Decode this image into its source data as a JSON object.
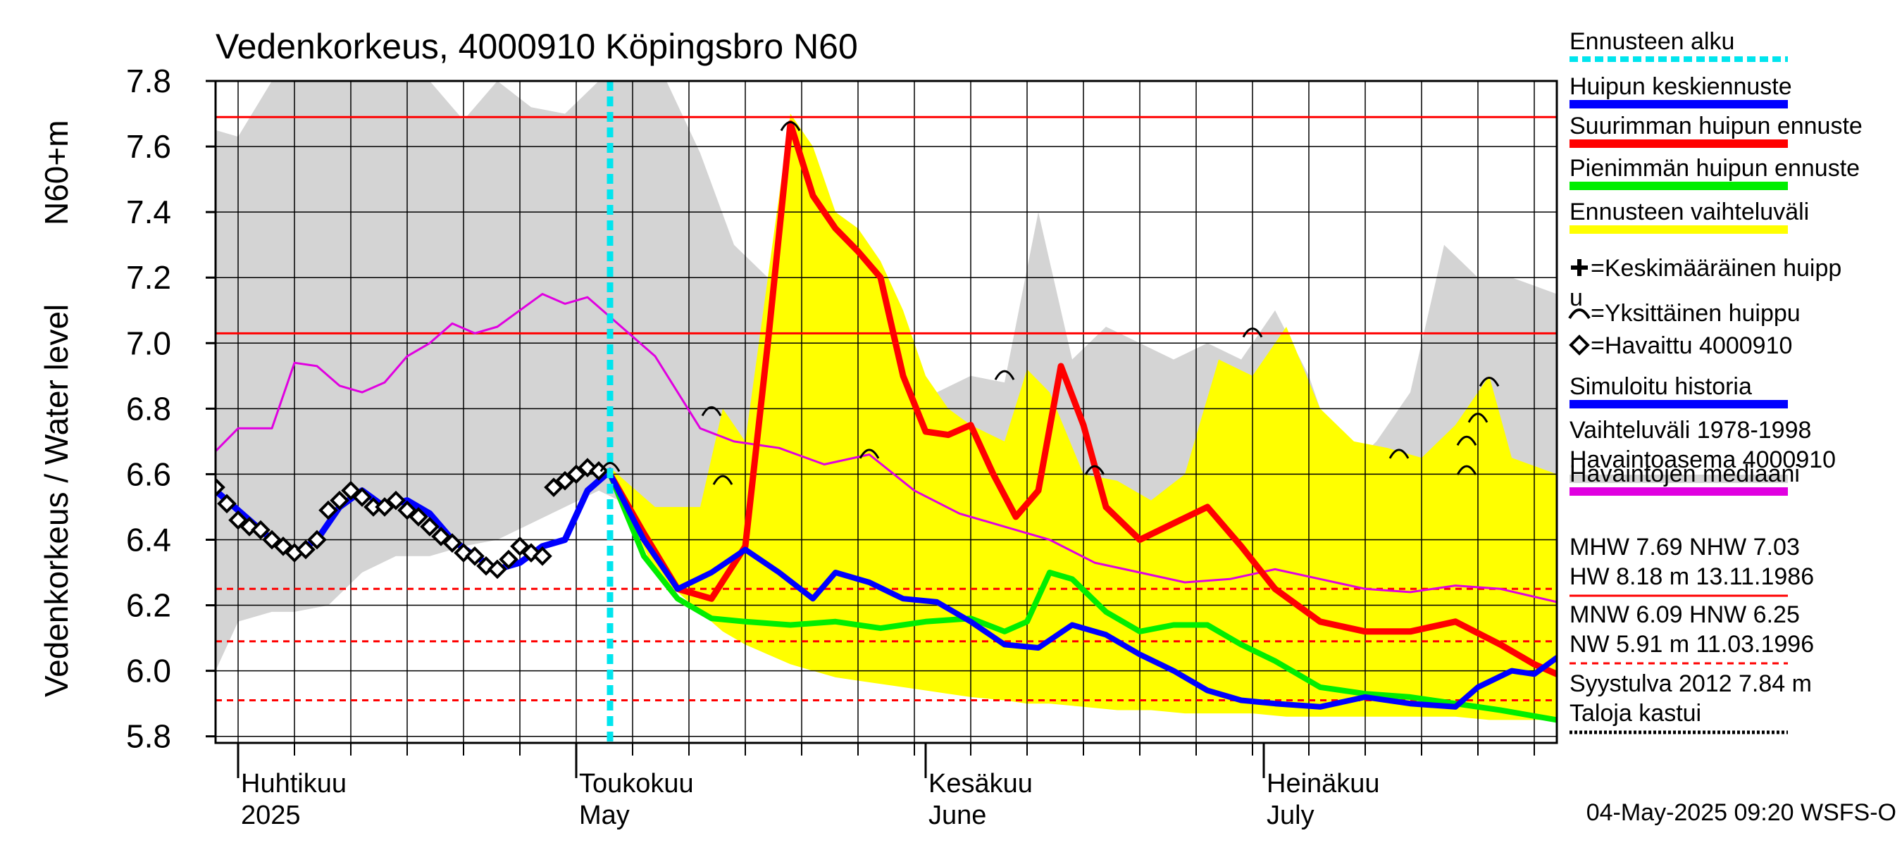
{
  "chart_data": {
    "type": "line",
    "title": "Vedenkorkeus, 4000910 Köpingsbro N60",
    "ylabel_main": "Vedenkorkeus / Water level",
    "ylabel_unit": "N60+m",
    "ylim": [
      5.78,
      7.8
    ],
    "x_range": [
      "2025-03-30",
      "2025-07-27"
    ],
    "y_ticks": [
      "5.8",
      "6.0",
      "6.2",
      "6.4",
      "6.6",
      "6.8",
      "7.0",
      "7.2",
      "7.4",
      "7.6",
      "7.8"
    ],
    "month_labels": [
      {
        "date": "2025-04-01",
        "fi": "Huhtikuu",
        "en": "2025"
      },
      {
        "date": "2025-05-01",
        "fi": "Toukokuu",
        "en": "May"
      },
      {
        "date": "2025-06-01",
        "fi": "Kesäkuu",
        "en": "June"
      },
      {
        "date": "2025-07-01",
        "fi": "Heinäkuu",
        "en": "July"
      }
    ],
    "forecast_start": "2025-05-04",
    "reference_lines": [
      {
        "name": "MHW",
        "value": 7.69,
        "style": "solid"
      },
      {
        "name": "NHW",
        "value": 7.03,
        "style": "solid"
      },
      {
        "name": "HNW",
        "value": 6.25,
        "style": "dashed"
      },
      {
        "name": "MNW",
        "value": 6.09,
        "style": "dashed"
      },
      {
        "name": "NW",
        "value": 5.91,
        "style": "dashed"
      }
    ],
    "historical_range": {
      "x": [
        "2025-03-30",
        "2025-04-01",
        "2025-04-04",
        "2025-04-06",
        "2025-04-09",
        "2025-04-12",
        "2025-04-15",
        "2025-04-18",
        "2025-04-21",
        "2025-04-24",
        "2025-04-27",
        "2025-04-30",
        "2025-05-03",
        "2025-05-06",
        "2025-05-09",
        "2025-05-12",
        "2025-05-15",
        "2025-05-18",
        "2025-05-21",
        "2025-05-24",
        "2025-05-27",
        "2025-05-30",
        "2025-06-02",
        "2025-06-05",
        "2025-06-08",
        "2025-06-11",
        "2025-06-14",
        "2025-06-17",
        "2025-06-20",
        "2025-06-23",
        "2025-06-26",
        "2025-06-29",
        "2025-07-02",
        "2025-07-05",
        "2025-07-08",
        "2025-07-11",
        "2025-07-14",
        "2025-07-17",
        "2025-07-20",
        "2025-07-23",
        "2025-07-27"
      ],
      "high": [
        7.65,
        7.63,
        7.8,
        7.8,
        7.8,
        7.8,
        7.8,
        7.8,
        7.68,
        7.8,
        7.72,
        7.7,
        7.8,
        7.8,
        7.8,
        7.58,
        7.3,
        7.2,
        7.05,
        6.95,
        6.9,
        6.88,
        6.85,
        6.9,
        6.88,
        7.4,
        6.95,
        7.05,
        7.0,
        6.95,
        7.0,
        6.95,
        7.1,
        6.9,
        6.6,
        6.7,
        6.85,
        7.3,
        7.2,
        7.2,
        7.15
      ],
      "low": [
        6.0,
        6.15,
        6.18,
        6.18,
        6.2,
        6.3,
        6.35,
        6.35,
        6.38,
        6.4,
        6.45,
        6.5,
        6.55,
        6.5,
        6.35,
        6.28,
        6.25,
        6.22,
        6.2,
        6.18,
        6.15,
        6.12,
        6.1,
        6.08,
        6.05,
        6.03,
        6.0,
        5.98,
        5.96,
        5.95,
        5.94,
        5.93,
        5.92,
        5.92,
        5.92,
        5.92,
        5.92,
        5.93,
        5.93,
        5.95,
        5.95
      ]
    },
    "forecast_range": {
      "x": [
        "2025-05-04",
        "2025-05-08",
        "2025-05-12",
        "2025-05-14",
        "2025-05-16",
        "2025-05-18",
        "2025-05-20",
        "2025-05-22",
        "2025-05-24",
        "2025-05-26",
        "2025-05-28",
        "2025-05-30",
        "2025-06-01",
        "2025-06-03",
        "2025-06-05",
        "2025-06-08",
        "2025-06-10",
        "2025-06-12",
        "2025-06-15",
        "2025-06-18",
        "2025-06-21",
        "2025-06-24",
        "2025-06-27",
        "2025-06-30",
        "2025-07-03",
        "2025-07-06",
        "2025-07-09",
        "2025-07-12",
        "2025-07-15",
        "2025-07-18",
        "2025-07-21",
        "2025-07-23",
        "2025-07-27"
      ],
      "high": [
        6.62,
        6.5,
        6.5,
        6.8,
        6.7,
        7.2,
        7.7,
        7.6,
        7.4,
        7.35,
        7.25,
        7.1,
        6.9,
        6.8,
        6.75,
        6.7,
        6.92,
        6.85,
        6.6,
        6.58,
        6.52,
        6.6,
        6.95,
        6.9,
        7.05,
        6.8,
        6.7,
        6.68,
        6.65,
        6.75,
        6.9,
        6.65,
        6.6
      ],
      "low": [
        6.6,
        6.3,
        6.18,
        6.12,
        6.08,
        6.05,
        6.02,
        6.0,
        5.98,
        5.97,
        5.96,
        5.95,
        5.94,
        5.93,
        5.92,
        5.91,
        5.9,
        5.9,
        5.89,
        5.88,
        5.88,
        5.87,
        5.87,
        5.87,
        5.86,
        5.86,
        5.86,
        5.86,
        5.86,
        5.86,
        5.85,
        5.85,
        5.85
      ]
    },
    "series": [
      {
        "name": "Havaintojen mediaani",
        "color": "#e000e0",
        "x": [
          "2025-03-30",
          "2025-04-01",
          "2025-04-04",
          "2025-04-06",
          "2025-04-08",
          "2025-04-10",
          "2025-04-12",
          "2025-04-14",
          "2025-04-16",
          "2025-04-18",
          "2025-04-20",
          "2025-04-22",
          "2025-04-24",
          "2025-04-26",
          "2025-04-28",
          "2025-04-30",
          "2025-05-02",
          "2025-05-05",
          "2025-05-08",
          "2025-05-12",
          "2025-05-15",
          "2025-05-19",
          "2025-05-23",
          "2025-05-27",
          "2025-05-31",
          "2025-06-04",
          "2025-06-08",
          "2025-06-12",
          "2025-06-16",
          "2025-06-20",
          "2025-06-24",
          "2025-06-28",
          "2025-07-02",
          "2025-07-06",
          "2025-07-10",
          "2025-07-14",
          "2025-07-18",
          "2025-07-22",
          "2025-07-27"
        ],
        "y": [
          6.67,
          6.74,
          6.74,
          6.94,
          6.93,
          6.87,
          6.85,
          6.88,
          6.96,
          7.0,
          7.06,
          7.03,
          7.05,
          7.1,
          7.15,
          7.12,
          7.14,
          7.05,
          6.96,
          6.74,
          6.7,
          6.68,
          6.63,
          6.66,
          6.55,
          6.48,
          6.44,
          6.4,
          6.33,
          6.3,
          6.27,
          6.28,
          6.31,
          6.28,
          6.25,
          6.24,
          6.26,
          6.25,
          6.21
        ]
      },
      {
        "name": "Suurimman huipun ennuste",
        "color": "#ff0000",
        "x": [
          "2025-05-04",
          "2025-05-07",
          "2025-05-10",
          "2025-05-13",
          "2025-05-16",
          "2025-05-18",
          "2025-05-20",
          "2025-05-22",
          "2025-05-24",
          "2025-05-26",
          "2025-05-28",
          "2025-05-30",
          "2025-06-01",
          "2025-06-03",
          "2025-06-05",
          "2025-06-07",
          "2025-06-09",
          "2025-06-11",
          "2025-06-13",
          "2025-06-15",
          "2025-06-17",
          "2025-06-20",
          "2025-06-23",
          "2025-06-26",
          "2025-06-29",
          "2025-07-02",
          "2025-07-06",
          "2025-07-10",
          "2025-07-14",
          "2025-07-18",
          "2025-07-22",
          "2025-07-25",
          "2025-07-27"
        ],
        "y": [
          6.6,
          6.42,
          6.25,
          6.22,
          6.38,
          7.0,
          7.67,
          7.45,
          7.35,
          7.28,
          7.2,
          6.9,
          6.73,
          6.72,
          6.75,
          6.6,
          6.47,
          6.55,
          6.93,
          6.75,
          6.5,
          6.4,
          6.45,
          6.5,
          6.38,
          6.25,
          6.15,
          6.12,
          6.12,
          6.15,
          6.08,
          6.02,
          5.99
        ]
      },
      {
        "name": "Pienimmän huipun ennuste",
        "color": "#00ee00",
        "x": [
          "2025-05-04",
          "2025-05-07",
          "2025-05-10",
          "2025-05-13",
          "2025-05-16",
          "2025-05-20",
          "2025-05-24",
          "2025-05-28",
          "2025-06-01",
          "2025-06-05",
          "2025-06-08",
          "2025-06-10",
          "2025-06-12",
          "2025-06-14",
          "2025-06-17",
          "2025-06-20",
          "2025-06-23",
          "2025-06-26",
          "2025-06-29",
          "2025-07-02",
          "2025-07-06",
          "2025-07-10",
          "2025-07-14",
          "2025-07-18",
          "2025-07-22",
          "2025-07-27"
        ],
        "y": [
          6.6,
          6.35,
          6.22,
          6.16,
          6.15,
          6.14,
          6.15,
          6.13,
          6.15,
          6.16,
          6.12,
          6.15,
          6.3,
          6.28,
          6.18,
          6.12,
          6.14,
          6.14,
          6.08,
          6.03,
          5.95,
          5.93,
          5.92,
          5.9,
          5.88,
          5.85
        ]
      },
      {
        "name": "Huipun keskiennuste",
        "color": "#0000ff",
        "x": [
          "2025-05-04",
          "2025-05-07",
          "2025-05-10",
          "2025-05-13",
          "2025-05-16",
          "2025-05-19",
          "2025-05-22",
          "2025-05-24",
          "2025-05-27",
          "2025-05-30",
          "2025-06-02",
          "2025-06-05",
          "2025-06-08",
          "2025-06-11",
          "2025-06-14",
          "2025-06-17",
          "2025-06-20",
          "2025-06-23",
          "2025-06-26",
          "2025-06-29",
          "2025-07-02",
          "2025-07-06",
          "2025-07-10",
          "2025-07-14",
          "2025-07-18",
          "2025-07-20",
          "2025-07-23",
          "2025-07-25",
          "2025-07-27"
        ],
        "y": [
          6.6,
          6.4,
          6.25,
          6.3,
          6.37,
          6.3,
          6.22,
          6.3,
          6.27,
          6.22,
          6.21,
          6.15,
          6.08,
          6.07,
          6.14,
          6.11,
          6.05,
          6.0,
          5.94,
          5.91,
          5.9,
          5.89,
          5.92,
          5.9,
          5.89,
          5.95,
          6.0,
          5.99,
          6.04
        ]
      },
      {
        "name": "Simuloitu historia",
        "color": "#0000ff",
        "x": [
          "2025-03-30",
          "2025-04-02",
          "2025-04-04",
          "2025-04-06",
          "2025-04-08",
          "2025-04-10",
          "2025-04-12",
          "2025-04-14",
          "2025-04-16",
          "2025-04-18",
          "2025-04-20",
          "2025-04-22",
          "2025-04-24",
          "2025-04-26",
          "2025-04-28",
          "2025-04-30",
          "2025-05-02",
          "2025-05-04"
        ],
        "y": [
          6.55,
          6.46,
          6.4,
          6.36,
          6.4,
          6.5,
          6.55,
          6.5,
          6.52,
          6.48,
          6.4,
          6.35,
          6.31,
          6.33,
          6.38,
          6.4,
          6.55,
          6.61
        ]
      },
      {
        "name": "Havaittu 4000910",
        "color": "#000000",
        "x": [
          "2025-03-30",
          "2025-03-31",
          "2025-04-01",
          "2025-04-02",
          "2025-04-03",
          "2025-04-04",
          "2025-04-05",
          "2025-04-06",
          "2025-04-07",
          "2025-04-08",
          "2025-04-09",
          "2025-04-10",
          "2025-04-11",
          "2025-04-12",
          "2025-04-13",
          "2025-04-14",
          "2025-04-15",
          "2025-04-16",
          "2025-04-17",
          "2025-04-18",
          "2025-04-19",
          "2025-04-20",
          "2025-04-21",
          "2025-04-22",
          "2025-04-23",
          "2025-04-24",
          "2025-04-25",
          "2025-04-26",
          "2025-04-27",
          "2025-04-28",
          "2025-04-29",
          "2025-04-30",
          "2025-05-01",
          "2025-05-02",
          "2025-05-03"
        ],
        "y": [
          6.56,
          6.51,
          6.46,
          6.44,
          6.43,
          6.4,
          6.38,
          6.36,
          6.37,
          6.4,
          6.49,
          6.52,
          6.55,
          6.53,
          6.5,
          6.5,
          6.52,
          6.49,
          6.47,
          6.44,
          6.41,
          6.39,
          6.36,
          6.35,
          6.32,
          6.31,
          6.34,
          6.38,
          6.36,
          6.35,
          6.56,
          6.58,
          6.6,
          6.62,
          6.61
        ]
      }
    ],
    "single_peaks": [
      {
        "date": "2025-05-13",
        "value": 6.8
      },
      {
        "date": "2025-05-14",
        "value": 6.59
      },
      {
        "date": "2025-05-20",
        "value": 7.67
      },
      {
        "date": "2025-05-27",
        "value": 6.67
      },
      {
        "date": "2025-06-08",
        "value": 6.91
      },
      {
        "date": "2025-06-16",
        "value": 6.62
      },
      {
        "date": "2025-06-30",
        "value": 7.04
      },
      {
        "date": "2025-07-13",
        "value": 6.67
      },
      {
        "date": "2025-07-19",
        "value": 6.62
      },
      {
        "date": "2025-07-19",
        "value": 6.71
      },
      {
        "date": "2025-07-20",
        "value": 6.78
      },
      {
        "date": "2025-07-21",
        "value": 6.89
      },
      {
        "date": "2025-05-04",
        "value": 6.63
      }
    ],
    "legend": [
      {
        "label": "Ennusteen alku",
        "type": "dashed",
        "color": "#00e5ee"
      },
      {
        "label": "Huipun keskiennuste",
        "type": "line",
        "color": "#0000ff"
      },
      {
        "label": "Suurimman huipun ennuste",
        "type": "line",
        "color": "#ff0000"
      },
      {
        "label": "Pienimmän huipun ennuste",
        "type": "line",
        "color": "#00ee00"
      },
      {
        "label": "Ennusteen vaihteluväli",
        "type": "line",
        "color": "#ffff00"
      },
      {
        "label": "=Keskimääräinen huipp",
        "label2": "u",
        "type": "plus",
        "color": "#000000"
      },
      {
        "label": "=Yksittäinen huippu",
        "type": "arc",
        "color": "#000000"
      },
      {
        "label": "=Havaittu 4000910",
        "type": "diamond",
        "color": "#000000"
      },
      {
        "label": "Simuloitu historia",
        "type": "line",
        "color": "#0000ff"
      },
      {
        "label": "Vaihteluväli 1978-1998",
        "label2": " Havaintoasema 4000910",
        "type": "line",
        "color": "#d4d4d4"
      },
      {
        "label": "Havaintojen mediaani",
        "type": "line",
        "color": "#e000e0"
      }
    ],
    "stats_block_1": [
      "MHW   7.69 NHW   7.03",
      "HW   8.18 m 13.11.1986"
    ],
    "stats_block_2": [
      "MNW   6.09 HNW   6.25",
      "NW   5.91 m 11.03.1996"
    ],
    "stats_block_3": [
      "Syystulva 2012 7.84 m",
      "Taloja kastui"
    ],
    "footer": "04-May-2025 09:20 WSFS-O",
    "colors": {
      "historical_range": "#d4d4d4",
      "forecast_range": "#ffff00",
      "reference": "#ff0000",
      "forecast_start": "#00e5ee"
    }
  }
}
